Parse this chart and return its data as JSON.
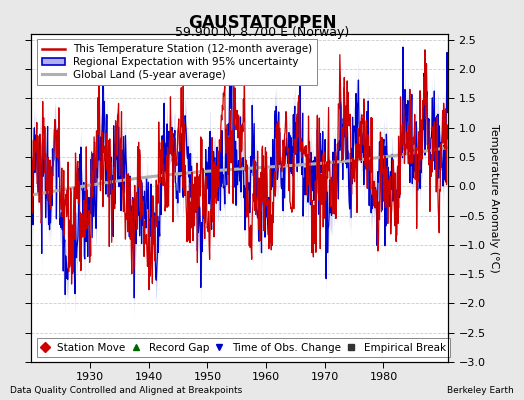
{
  "title": "GAUSTATOPPEN",
  "subtitle": "59.900 N, 8.700 E (Norway)",
  "ylabel": "Temperature Anomaly (°C)",
  "xlabel_bottom_left": "Data Quality Controlled and Aligned at Breakpoints",
  "xlabel_bottom_right": "Berkeley Earth",
  "xlim": [
    1920,
    1991
  ],
  "ylim": [
    -3.0,
    2.6
  ],
  "yticks": [
    -3,
    -2.5,
    -2,
    -1.5,
    -1,
    -0.5,
    0,
    0.5,
    1,
    1.5,
    2,
    2.5
  ],
  "xticks": [
    1930,
    1940,
    1950,
    1960,
    1970,
    1980
  ],
  "background_color": "#e8e8e8",
  "plot_bg_color": "#ffffff",
  "grid_color": "#cccccc",
  "red_color": "#cc0000",
  "blue_color": "#0000cc",
  "blue_fill_color": "#b0b0ee",
  "gray_color": "#b0b0b0",
  "title_fontsize": 12,
  "subtitle_fontsize": 9,
  "tick_fontsize": 8,
  "label_fontsize": 8,
  "legend_fontsize": 7.5
}
